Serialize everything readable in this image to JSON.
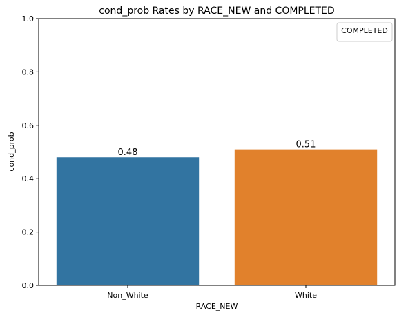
{
  "chart_data": {
    "type": "bar",
    "title": "cond_prob Rates by RACE_NEW and COMPLETED",
    "xlabel": "RACE_NEW",
    "ylabel": "cond_prob",
    "categories": [
      "Non_White",
      "White"
    ],
    "values": [
      0.48,
      0.51
    ],
    "data_labels": [
      "0.48",
      "0.51"
    ],
    "colors": [
      "#3274a1",
      "#e1812c"
    ],
    "ylim": [
      0,
      1.0
    ],
    "yticks": [
      0.0,
      0.2,
      0.4,
      0.6,
      0.8,
      1.0
    ],
    "ytick_labels": [
      "0.0",
      "0.2",
      "0.4",
      "0.6",
      "0.8",
      "1.0"
    ],
    "grid": false,
    "legend": {
      "title": "COMPLETED",
      "placement": "top-right"
    }
  }
}
